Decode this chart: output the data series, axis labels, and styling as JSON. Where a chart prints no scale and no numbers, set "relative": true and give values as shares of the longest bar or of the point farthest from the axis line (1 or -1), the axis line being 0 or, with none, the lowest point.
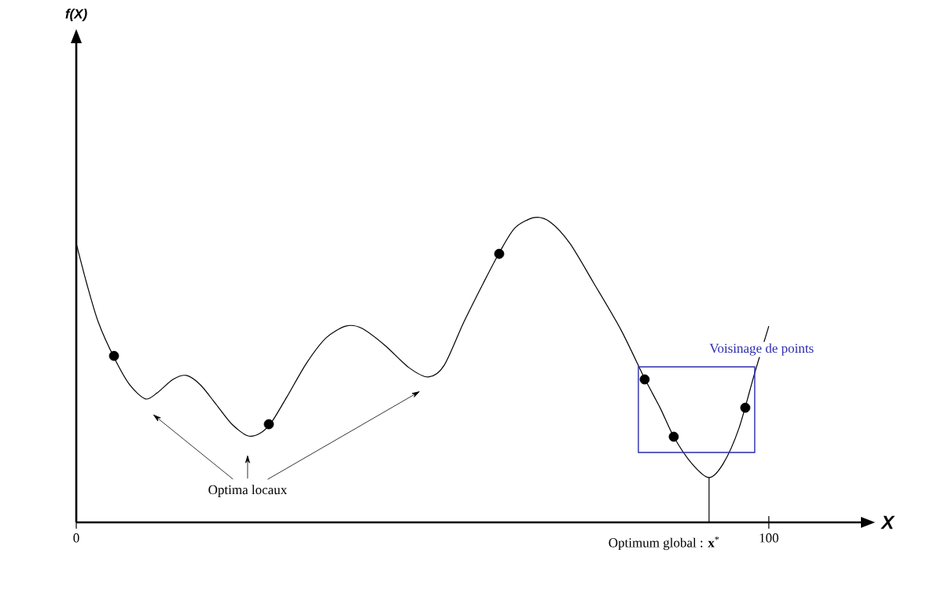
{
  "chart_data": {
    "type": "line",
    "relative": true,
    "xlabel": "X",
    "xlim": [
      0,
      113.3
    ],
    "xticks": [
      0,
      100
    ],
    "grid": false,
    "series": [
      {
        "color": "#000000",
        "marker": "none",
        "x": [
          0,
          1.48,
          3.18,
          5.45,
          7.72,
          9.99,
          11.69,
          13.96,
          15.89,
          17.93,
          20.2,
          22.47,
          24.74,
          26.45,
          28.15,
          30.42,
          33.26,
          36.1,
          38.93,
          41.2,
          44.61,
          48.01,
          50.85,
          53.12,
          55.96,
          58.8,
          61.07,
          63.34,
          66.18,
          68.44,
          71.28,
          74.69,
          78.66,
          82.07,
          84.34,
          86.27,
          88.88,
          91.37,
          93.42,
          95.69,
          97.96,
          100
        ],
        "values": [
          0.915,
          0.786,
          0.657,
          0.541,
          0.451,
          0.405,
          0.425,
          0.469,
          0.482,
          0.451,
          0.387,
          0.322,
          0.284,
          0.291,
          0.327,
          0.412,
          0.523,
          0.606,
          0.644,
          0.637,
          0.58,
          0.508,
          0.477,
          0.515,
          0.657,
          0.786,
          0.884,
          0.966,
          1.0,
          0.985,
          0.915,
          0.786,
          0.631,
          0.472,
          0.374,
          0.281,
          0.193,
          0.147,
          0.193,
          0.309,
          0.49,
          0.644
        ]
      },
      {
        "type": "scatter",
        "color": "#000000",
        "marker": "circle",
        "x": [
          5.45,
          27.81,
          61.07
        ],
        "values": [
          0.546,
          0.322,
          0.881
        ]
      },
      {
        "type": "scatter",
        "color": "#000000",
        "marker": "circle",
        "x": [
          82.07,
          86.27,
          96.6
        ],
        "values": [
          0.469,
          0.281,
          0.376
        ]
      }
    ],
    "annotations": [
      "Optima locaux",
      "Voisinage de points",
      {
        "text": "Optimum global : **x**$^{*}$",
        "x": 91.37,
        "y": 0.147
      },
      "f(X)"
    ]
  }
}
